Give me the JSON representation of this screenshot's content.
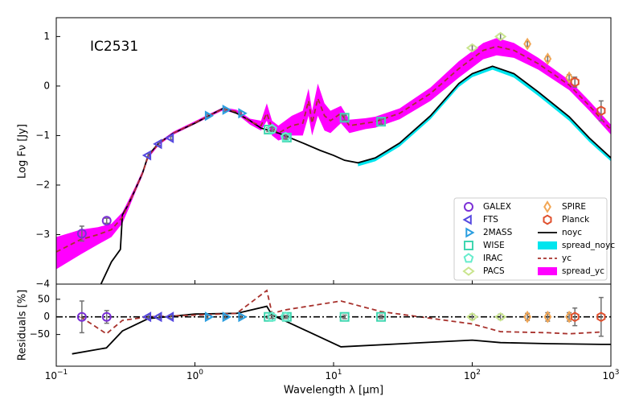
{
  "chart_data": {
    "type": "line",
    "annotation": "IC2531",
    "ylabel": "Log Fν [Jy]",
    "xlabel": "Wavelength λ [μm]",
    "residual_ylabel": "Residuals [%]",
    "xscale": "log",
    "xlim": [
      0.1,
      1000
    ],
    "xticks": [
      {
        "value": 0.1,
        "label": "10−1"
      },
      {
        "value": 1,
        "label": "100"
      },
      {
        "value": 10,
        "label": "101"
      },
      {
        "value": 100,
        "label": "102"
      },
      {
        "value": 1000,
        "label": "103"
      }
    ],
    "ylim": [
      -4,
      1.38
    ],
    "yticks": [
      {
        "value": -4,
        "label": "−4"
      },
      {
        "value": -3,
        "label": "−3"
      },
      {
        "value": -2,
        "label": "−2"
      },
      {
        "value": -1,
        "label": "−1"
      },
      0,
      1
    ],
    "residual_ylim": [
      -140,
      93
    ],
    "residual_yticks": [
      {
        "value": -50,
        "label": "−50"
      },
      0,
      50
    ],
    "residual_hline": 0,
    "legend": "lower right",
    "series": [
      {
        "name": "GALEX",
        "kind": "points",
        "marker": "o",
        "color": "#7b2fd6",
        "x": [
          0.153,
          0.231
        ],
        "values": [
          -2.98,
          -2.72
        ],
        "errors": [
          0.15,
          0.05
        ],
        "residuals": [
          0,
          0
        ],
        "residual_errors": [
          45,
          18
        ]
      },
      {
        "name": "FTS",
        "kind": "points",
        "marker": "<",
        "color": "#5548e0",
        "x": [
          0.46,
          0.55,
          0.67
        ],
        "values": [
          -1.4,
          -1.17,
          -1.05
        ],
        "errors": [
          0.03,
          0.03,
          0.03
        ],
        "residuals": [
          0,
          0,
          0
        ],
        "residual_errors": [
          5,
          5,
          5
        ]
      },
      {
        "name": "2MASS",
        "kind": "points",
        "marker": ">",
        "color": "#2a9ee0",
        "x": [
          1.24,
          1.66,
          2.16
        ],
        "values": [
          -0.6,
          -0.48,
          -0.55
        ],
        "errors": [
          0.03,
          0.03,
          0.03
        ],
        "residuals": [
          0,
          0,
          0
        ],
        "residual_errors": [
          4,
          4,
          4
        ]
      },
      {
        "name": "WISE",
        "kind": "points",
        "marker": "s",
        "color": "#3fd6b0",
        "x": [
          3.4,
          4.6,
          12,
          22
        ],
        "values": [
          -0.88,
          -1.04,
          -0.64,
          -0.72
        ],
        "errors": [
          0.04,
          0.04,
          0.05,
          0.05
        ],
        "residuals": [
          0,
          0,
          0,
          0
        ],
        "residual_errors": [
          4,
          4,
          5,
          5
        ]
      },
      {
        "name": "IRAC",
        "kind": "points",
        "marker": "p",
        "color": "#66eccc",
        "x": [
          3.6,
          4.5
        ],
        "values": [
          -0.87,
          -1.03
        ],
        "errors": [
          0.04,
          0.04
        ],
        "residuals": [
          0,
          0
        ],
        "residual_errors": [
          4,
          4
        ]
      },
      {
        "name": "PACS",
        "kind": "points",
        "marker": "d",
        "color": "#c9e58e",
        "x": [
          100,
          160
        ],
        "values": [
          0.77,
          1.0
        ],
        "errors": [
          0.05,
          0.05
        ],
        "residuals": [
          0,
          0
        ],
        "residual_errors": [
          8,
          8
        ]
      },
      {
        "name": "SPIRE",
        "kind": "points",
        "marker": "D",
        "color": "#f2a654",
        "x": [
          250,
          350,
          500
        ],
        "values": [
          0.85,
          0.55,
          0.17
        ],
        "errors": [
          0.05,
          0.05,
          0.06
        ],
        "residuals": [
          0,
          0,
          0
        ],
        "residual_errors": [
          10,
          12,
          12
        ]
      },
      {
        "name": "Planck",
        "kind": "points",
        "marker": "h",
        "color": "#e0502e",
        "x": [
          550,
          850
        ],
        "values": [
          0.08,
          -0.5
        ],
        "errors": [
          0.1,
          0.2
        ],
        "residuals": [
          0,
          0
        ],
        "residual_errors": [
          25,
          55
        ]
      },
      {
        "name": "noyc",
        "kind": "line",
        "style": "solid",
        "color": "#000000",
        "x": [
          0.21,
          0.25,
          0.29,
          0.3,
          0.33,
          0.37,
          0.42,
          0.46,
          0.55,
          0.7,
          1.0,
          1.3,
          1.6,
          2.0,
          2.5,
          3.0,
          4.0,
          6,
          8,
          10,
          12,
          15,
          20,
          30,
          50,
          80,
          100,
          140,
          200,
          300,
          500,
          700,
          1000
        ],
        "values": [
          -4.0,
          -3.55,
          -3.3,
          -2.6,
          -2.4,
          -2.1,
          -1.75,
          -1.4,
          -1.15,
          -0.95,
          -0.75,
          -0.58,
          -0.45,
          -0.55,
          -0.7,
          -0.85,
          -0.95,
          -1.15,
          -1.3,
          -1.4,
          -1.5,
          -1.55,
          -1.45,
          -1.15,
          -0.6,
          0.05,
          0.25,
          0.4,
          0.25,
          -0.12,
          -0.62,
          -1.05,
          -1.45
        ],
        "residual_x": [
          0.13,
          0.23,
          0.3,
          0.46,
          1.0,
          2.0,
          3.3,
          3.6,
          4.5,
          11.3,
          100,
          160,
          350,
          850,
          1000
        ],
        "residuals": [
          -105,
          -88,
          -40,
          -5,
          8,
          10,
          30,
          5,
          -12,
          -85,
          -66,
          -73,
          -76,
          -78,
          -78
        ]
      },
      {
        "name": "spread_noyc",
        "kind": "band",
        "color": "#00e5ee",
        "x": [
          15,
          20,
          30,
          50,
          80,
          100,
          140,
          200,
          300,
          500,
          700,
          1000
        ],
        "upper": [
          -1.55,
          -1.45,
          -1.15,
          -0.6,
          0.05,
          0.25,
          0.4,
          0.25,
          -0.12,
          -0.62,
          -1.05,
          -1.45
        ],
        "lower": [
          -1.62,
          -1.52,
          -1.22,
          -0.67,
          -0.02,
          0.18,
          0.33,
          0.17,
          -0.2,
          -0.7,
          -1.13,
          -1.52
        ]
      },
      {
        "name": "yc",
        "kind": "line",
        "style": "dashed",
        "color": "#a8322d",
        "x": [
          0.1,
          0.15,
          0.2,
          0.25,
          0.3,
          0.33,
          0.37,
          0.42,
          0.46,
          0.55,
          0.7,
          1.0,
          1.3,
          1.6,
          2.0,
          2.5,
          3.0,
          3.3,
          3.6,
          4.0,
          5.0,
          6.0,
          6.6,
          7.0,
          7.7,
          8.6,
          9.5,
          11.3,
          13,
          17,
          20,
          30,
          50,
          80,
          120,
          150,
          200,
          300,
          500,
          700,
          1000
        ],
        "values": [
          -3.35,
          -3.1,
          -3.0,
          -2.9,
          -2.65,
          -2.4,
          -2.1,
          -1.75,
          -1.42,
          -1.16,
          -0.95,
          -0.74,
          -0.58,
          -0.46,
          -0.52,
          -0.72,
          -0.8,
          -0.55,
          -0.85,
          -0.95,
          -0.8,
          -0.75,
          -0.3,
          -0.75,
          -0.25,
          -0.6,
          -0.7,
          -0.55,
          -0.8,
          -0.75,
          -0.72,
          -0.55,
          -0.15,
          0.35,
          0.72,
          0.8,
          0.72,
          0.45,
          0.02,
          -0.4,
          -0.88
        ],
        "residual_x": [
          0.15,
          0.23,
          0.3,
          0.46,
          1.0,
          2.0,
          3.3,
          3.6,
          4.5,
          11.3,
          22,
          100,
          160,
          350,
          500,
          850
        ],
        "residuals": [
          0,
          -48,
          -10,
          0,
          5,
          10,
          75,
          10,
          20,
          45,
          15,
          -20,
          -42,
          -45,
          -48,
          -43
        ]
      },
      {
        "name": "spread_yc",
        "kind": "band",
        "color": "#ff00ff",
        "x": [
          0.1,
          0.15,
          0.2,
          0.25,
          0.3,
          0.33,
          0.37,
          0.42,
          0.46,
          0.55,
          0.7,
          1.0,
          1.3,
          1.6,
          2.0,
          2.5,
          3.0,
          3.3,
          3.6,
          4.0,
          5.0,
          6.0,
          6.6,
          7.0,
          7.7,
          8.6,
          9.5,
          11.3,
          13,
          17,
          20,
          30,
          50,
          80,
          120,
          150,
          200,
          300,
          500,
          700,
          1000
        ],
        "upper": [
          -3.05,
          -2.9,
          -2.85,
          -2.78,
          -2.55,
          -2.32,
          -2.04,
          -1.7,
          -1.38,
          -1.13,
          -0.92,
          -0.71,
          -0.55,
          -0.43,
          -0.48,
          -0.66,
          -0.7,
          -0.35,
          -0.7,
          -0.8,
          -0.6,
          -0.5,
          -0.05,
          -0.5,
          0.05,
          -0.35,
          -0.5,
          -0.4,
          -0.68,
          -0.65,
          -0.62,
          -0.45,
          -0.03,
          0.5,
          0.87,
          0.97,
          0.87,
          0.57,
          0.12,
          -0.3,
          -0.78
        ],
        "lower": [
          -3.7,
          -3.4,
          -3.2,
          -3.05,
          -2.77,
          -2.5,
          -2.16,
          -1.8,
          -1.46,
          -1.19,
          -0.98,
          -0.77,
          -0.61,
          -0.49,
          -0.56,
          -0.78,
          -0.9,
          -0.7,
          -1.0,
          -1.1,
          -1.0,
          -1.0,
          -0.6,
          -1.0,
          -0.6,
          -0.9,
          -0.95,
          -0.75,
          -0.95,
          -0.87,
          -0.84,
          -0.67,
          -0.3,
          0.17,
          0.54,
          0.62,
          0.57,
          0.33,
          -0.08,
          -0.5,
          -0.98
        ]
      }
    ]
  }
}
